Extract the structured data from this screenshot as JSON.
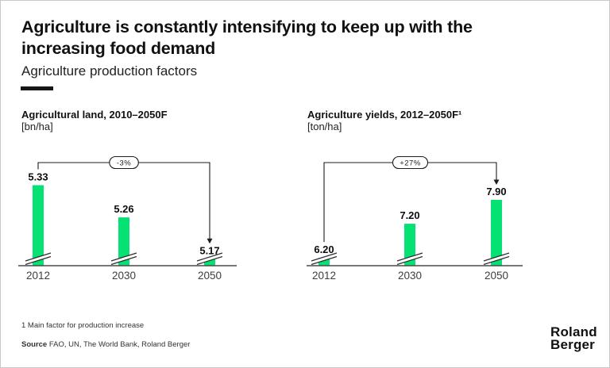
{
  "slide": {
    "title_lines": [
      "Agriculture is constantly intensifying to keep up with the",
      "increasing food demand"
    ],
    "subtitle": "Agriculture production factors"
  },
  "chart_data": [
    {
      "type": "bar",
      "title": "Agricultural land, 2010–2050F",
      "unit_label": "[bn/ha]",
      "categories": [
        "2012",
        "2030",
        "2050"
      ],
      "values": [
        5.33,
        5.26,
        5.17
      ],
      "value_labels": [
        "5.33",
        "5.26",
        "5.17"
      ],
      "change_badge": "-3%",
      "axis_break": true,
      "legend": "none",
      "grid": "off"
    },
    {
      "type": "bar",
      "title": "Agriculture yields, 2012–2050F¹",
      "unit_label": "[ton/ha]",
      "categories": [
        "2012",
        "2030",
        "2050"
      ],
      "values": [
        6.2,
        7.2,
        7.9
      ],
      "value_labels": [
        "6.20",
        "7.20",
        "7.90"
      ],
      "change_badge": "+27%",
      "axis_break": true,
      "legend": "none",
      "grid": "off"
    }
  ],
  "footnotes": {
    "note1": "1  Main factor for production increase",
    "source_label": "Source",
    "source_text": " FAO, UN, The World Bank, Roland Berger"
  },
  "logo": {
    "line1": "Roland",
    "line2": "Berger"
  },
  "colors": {
    "bar_green": "#05e173",
    "axis_line": "#4a4a4a",
    "bracket": "#1c1c1c"
  }
}
